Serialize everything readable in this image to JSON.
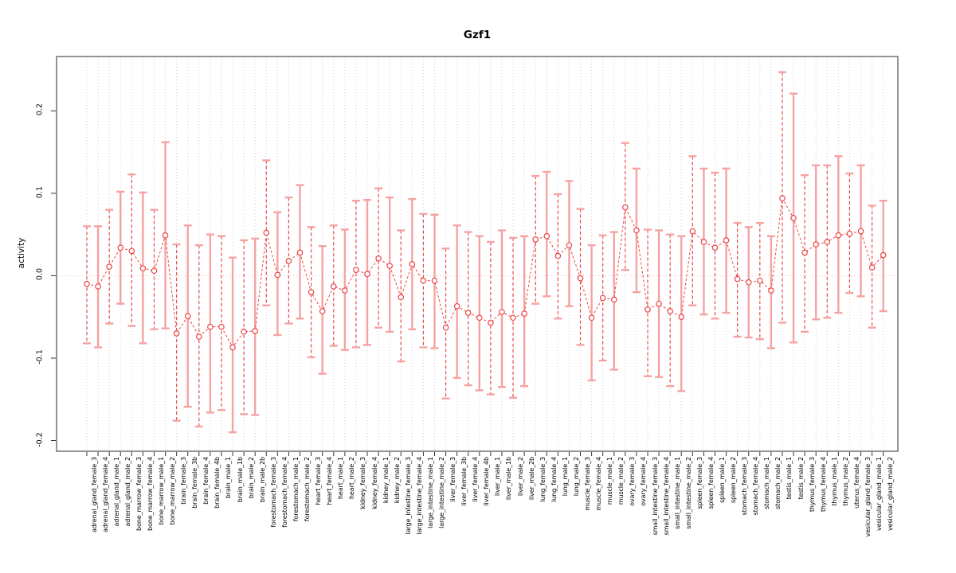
{
  "chart_data": {
    "type": "line",
    "subtype": "points-with-error-bars",
    "title": "Gzf1",
    "xlabel": "",
    "ylabel": "activity",
    "ylim": [
      -0.213,
      0.266
    ],
    "yticks": [
      -0.2,
      -0.1,
      0.0,
      0.1,
      0.2
    ],
    "grid": "dotted vertical gridline per category; dotted zero reference line",
    "legend_position": "none",
    "categories": [
      "adrenal_gland_female_3",
      "adrenal_gland_female_4",
      "adrenal_gland_male_1",
      "adrenal_gland_male_2",
      "bone_marrow_female_3",
      "bone_marrow_female_4",
      "bone_marrow_male_1",
      "bone_marrow_male_2",
      "brain_female_3",
      "brain_female_3b",
      "brain_female_4",
      "brain_female_4b",
      "brain_male_1",
      "brain_male_1b",
      "brain_male_2",
      "brain_male_2b",
      "forestomach_female_3",
      "forestomach_female_4",
      "forestomach_male_1",
      "forestomach_male_2",
      "heart_female_3",
      "heart_female_4",
      "heart_male_1",
      "heart_male_2",
      "kidney_female_3",
      "kidney_female_4",
      "kidney_male_1",
      "kidney_male_2",
      "large_intestine_female_3",
      "large_intestine_female_4",
      "large_intestine_male_1",
      "large_intestine_male_2",
      "liver_female_3",
      "liver_female_3b",
      "liver_female_4",
      "liver_female_4b",
      "liver_male_1",
      "liver_male_1b",
      "liver_male_2",
      "liver_male_2b",
      "lung_female_3",
      "lung_female_4",
      "lung_male_1",
      "lung_male_2",
      "muscle_female_3",
      "muscle_female_4",
      "muscle_male_1",
      "muscle_male_2",
      "ovary_female_3",
      "ovary_female_4",
      "small_intestine_female_3",
      "small_intestine_female_4",
      "small_intestine_male_1",
      "small_intestine_male_2",
      "spleen_female_3",
      "spleen_female_4",
      "spleen_male_1",
      "spleen_male_2",
      "stomach_female_3",
      "stomach_female_4",
      "stomach_male_1",
      "stomach_male_2",
      "testis_male_1",
      "testis_male_2",
      "thymus_female_3",
      "thymus_female_4",
      "thymus_male_1",
      "thymus_male_2",
      "uterus_female_4",
      "vesicular_gland_female_3",
      "vesicular_gland_male_1",
      "vesicular_gland_male_2"
    ],
    "values": [
      -0.01,
      -0.013,
      0.011,
      0.034,
      0.03,
      0.009,
      0.006,
      0.049,
      -0.07,
      -0.049,
      -0.074,
      -0.062,
      -0.062,
      -0.087,
      -0.068,
      -0.067,
      0.052,
      0.001,
      0.018,
      0.028,
      -0.02,
      -0.043,
      -0.013,
      -0.018,
      0.007,
      0.002,
      0.021,
      0.012,
      -0.026,
      0.014,
      -0.006,
      -0.006,
      -0.063,
      -0.037,
      -0.045,
      -0.051,
      -0.057,
      -0.044,
      -0.051,
      -0.046,
      0.044,
      0.048,
      0.024,
      0.037,
      -0.003,
      -0.051,
      -0.027,
      -0.029,
      0.083,
      0.055,
      -0.041,
      -0.034,
      -0.043,
      -0.05,
      0.054,
      0.041,
      0.034,
      0.043,
      -0.004,
      -0.008,
      -0.006,
      -0.018,
      0.094,
      0.07,
      0.028,
      0.038,
      0.041,
      0.049,
      0.051,
      0.054,
      0.01,
      0.025
    ],
    "ci_high": [
      0.06,
      0.06,
      0.08,
      0.102,
      0.123,
      0.101,
      0.08,
      0.162,
      0.038,
      0.061,
      0.037,
      0.05,
      0.048,
      0.022,
      0.043,
      0.045,
      0.14,
      0.077,
      0.095,
      0.11,
      0.059,
      0.036,
      0.061,
      0.056,
      0.091,
      0.092,
      0.106,
      0.095,
      0.055,
      0.093,
      0.075,
      0.074,
      0.033,
      0.061,
      0.053,
      0.048,
      0.041,
      0.055,
      0.046,
      0.048,
      0.121,
      0.126,
      0.099,
      0.115,
      0.081,
      0.037,
      0.049,
      0.053,
      0.161,
      0.13,
      0.056,
      0.055,
      0.05,
      0.048,
      0.145,
      0.13,
      0.125,
      0.13,
      0.064,
      0.059,
      0.064,
      0.048,
      0.247,
      0.221,
      0.122,
      0.134,
      0.134,
      0.145,
      0.124,
      0.134,
      0.085,
      0.091
    ],
    "ci_low": [
      -0.082,
      -0.087,
      -0.058,
      -0.034,
      -0.061,
      -0.082,
      -0.065,
      -0.064,
      -0.176,
      -0.159,
      -0.183,
      -0.166,
      -0.163,
      -0.19,
      -0.168,
      -0.169,
      -0.036,
      -0.072,
      -0.058,
      -0.052,
      -0.099,
      -0.119,
      -0.085,
      -0.09,
      -0.087,
      -0.084,
      -0.063,
      -0.068,
      -0.104,
      -0.065,
      -0.087,
      -0.088,
      -0.149,
      -0.124,
      -0.133,
      -0.139,
      -0.144,
      -0.135,
      -0.148,
      -0.134,
      -0.034,
      -0.025,
      -0.052,
      -0.037,
      -0.084,
      -0.127,
      -0.103,
      -0.114,
      0.007,
      -0.02,
      -0.122,
      -0.123,
      -0.134,
      -0.14,
      -0.036,
      -0.047,
      -0.052,
      -0.045,
      -0.074,
      -0.075,
      -0.077,
      -0.088,
      -0.057,
      -0.081,
      -0.068,
      -0.053,
      -0.051,
      -0.045,
      -0.021,
      -0.025,
      -0.063,
      -0.043
    ]
  },
  "colors": {
    "point_stroke": "#ee4343",
    "connector": "#ee4343",
    "errorbar_solid": "#f6a2a2",
    "errorbar_dashed": "#e64a4a",
    "errorbar_cap": "#f6a2a2",
    "zero_line": "#f3b5b5",
    "gridline": "#cfcfcf",
    "frame": "#666666",
    "tick": "#333333",
    "text": "#000000"
  }
}
